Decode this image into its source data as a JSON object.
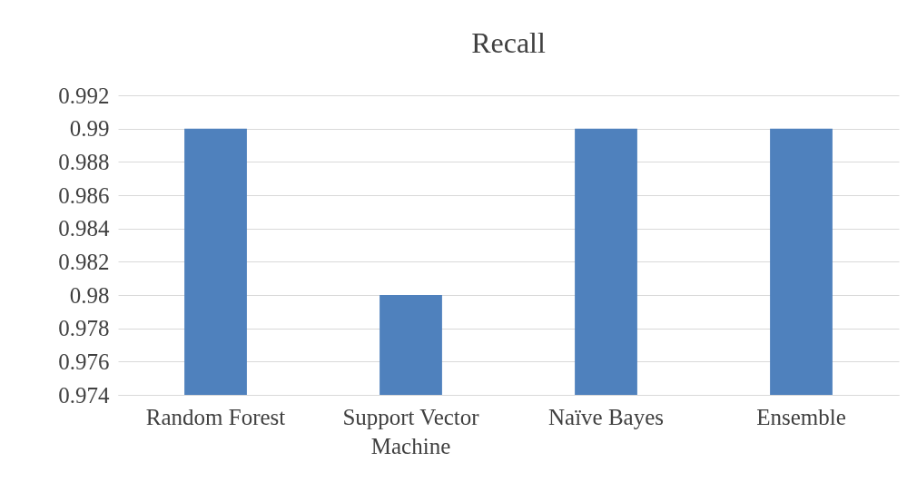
{
  "chart_data": {
    "type": "bar",
    "title": "Recall",
    "categories": [
      "Random Forest",
      "Support Vector Machine",
      "Naïve Bayes",
      "Ensemble"
    ],
    "series": [
      {
        "color": "#4f81bd",
        "values": [
          0.99,
          0.98,
          0.99,
          0.99
        ]
      }
    ],
    "ylim": [
      0.974,
      0.992
    ],
    "yticks": [
      0.974,
      0.976,
      0.978,
      0.98,
      0.982,
      0.984,
      0.986,
      0.988,
      0.99,
      0.992
    ],
    "grid": "y",
    "legend": false
  }
}
